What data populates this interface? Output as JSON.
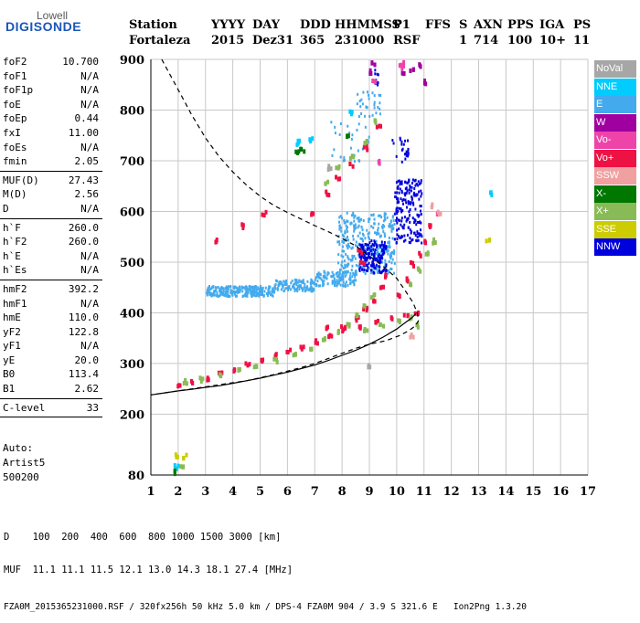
{
  "logo": {
    "top": "Lowell",
    "main": "DIGISONDE"
  },
  "header": {
    "labels": [
      "Station",
      "YYYY",
      "DAY",
      "DDD",
      "HHMMSS",
      "P1",
      "FFS",
      "S",
      "AXN",
      "PPS",
      "IGA",
      "PS"
    ],
    "values": [
      "Fortaleza",
      "2015",
      "Dez31",
      "365",
      "231000",
      "RSF",
      "1",
      "714",
      "100",
      "10+",
      "11"
    ]
  },
  "params": [
    [
      {
        "label": "foF2",
        "value": "10.700"
      },
      {
        "label": "foF1",
        "value": "N/A"
      },
      {
        "label": "foF1p",
        "value": "N/A"
      },
      {
        "label": "foE",
        "value": "N/A"
      },
      {
        "label": "foEp",
        "value": "0.44"
      },
      {
        "label": "fxI",
        "value": "11.00"
      },
      {
        "label": "foEs",
        "value": "N/A"
      },
      {
        "label": "fmin",
        "value": "2.05"
      }
    ],
    [
      {
        "label": "MUF(D)",
        "value": "27.43"
      },
      {
        "label": "M(D)",
        "value": "2.56"
      },
      {
        "label": "D",
        "value": "N/A"
      }
    ],
    [
      {
        "label": "h`F",
        "value": "260.0"
      },
      {
        "label": "h`F2",
        "value": "260.0"
      },
      {
        "label": "h`E",
        "value": "N/A"
      },
      {
        "label": "h`Es",
        "value": "N/A"
      }
    ],
    [
      {
        "label": "hmF2",
        "value": "392.2"
      },
      {
        "label": "hmF1",
        "value": "N/A"
      },
      {
        "label": "hmE",
        "value": "110.0"
      },
      {
        "label": "yF2",
        "value": "122.8"
      },
      {
        "label": "yF1",
        "value": "N/A"
      },
      {
        "label": "yE",
        "value": "20.0"
      },
      {
        "label": "B0",
        "value": "113.4"
      },
      {
        "label": "B1",
        "value": "2.62"
      }
    ],
    [
      {
        "label": "C-level",
        "value": "33"
      }
    ]
  ],
  "auto": {
    "label": "Auto:",
    "artist": "Artist5",
    "code": "500200"
  },
  "legend": [
    {
      "label": "NoVal",
      "color": "#a6a6a6"
    },
    {
      "label": "NNE",
      "color": "#00ccff"
    },
    {
      "label": "E",
      "color": "#44aaee"
    },
    {
      "label": "W",
      "color": "#a000a0"
    },
    {
      "label": "Vo-",
      "color": "#ee44aa"
    },
    {
      "label": "Vo+",
      "color": "#ee1144"
    },
    {
      "label": "SSW",
      "color": "#f0a0a0"
    },
    {
      "label": "X-",
      "color": "#007700"
    },
    {
      "label": "X+",
      "color": "#88bb55"
    },
    {
      "label": "SSE",
      "color": "#cccc00"
    },
    {
      "label": "NNW",
      "color": "#0000dd"
    }
  ],
  "footer": {
    "line1": "D    100  200  400  600  800 1000 1500 3000 [km]",
    "line2": "MUF  11.1 11.1 11.5 12.1 13.0 14.3 18.1 27.4 [MHz]",
    "line3": "FZA0M_2015365231000.RSF / 320fx256h 50 kHz 5.0 km / DPS-4 FZA0M 904 / 3.9 S 321.6 E   Ion2Png 1.3.20"
  },
  "chart_data": {
    "type": "scatter",
    "xlim": [
      1,
      17
    ],
    "ylim": [
      80,
      900
    ],
    "x_ticks": [
      1,
      2,
      3,
      4,
      5,
      6,
      7,
      8,
      9,
      10,
      11,
      12,
      13,
      14,
      15,
      16,
      17
    ],
    "y_ticks": [
      80,
      200,
      300,
      400,
      500,
      600,
      700,
      800,
      900
    ],
    "grid": true,
    "legend_placement": "right",
    "series": [
      {
        "name": "E",
        "color": "#44aaee",
        "clusters": [
          {
            "x": [
              3.0,
              5.5
            ],
            "y": [
              435,
              455
            ],
            "n": 260
          },
          {
            "x": [
              5.5,
              7.0
            ],
            "y": [
              445,
              468
            ],
            "n": 120
          },
          {
            "x": [
              7.0,
              8.5
            ],
            "y": [
              455,
              485
            ],
            "n": 120
          },
          {
            "x": [
              7.8,
              9.9
            ],
            "y": [
              480,
              600
            ],
            "n": 320
          },
          {
            "x": [
              8.5,
              9.4
            ],
            "y": [
              790,
              840
            ],
            "n": 30
          },
          {
            "x": [
              7.5,
              9.0
            ],
            "y": [
              700,
              780
            ],
            "n": 30
          }
        ]
      },
      {
        "name": "NNW",
        "color": "#0000dd",
        "clusters": [
          {
            "x": [
              8.6,
              9.6
            ],
            "y": [
              480,
              545
            ],
            "n": 150
          },
          {
            "x": [
              9.9,
              10.9
            ],
            "y": [
              540,
              665
            ],
            "n": 180
          },
          {
            "x": [
              9.8,
              10.4
            ],
            "y": [
              700,
              750
            ],
            "n": 25
          },
          {
            "x": [
              9.1,
              9.3
            ],
            "y": [
              850,
              890
            ],
            "n": 10
          }
        ]
      },
      {
        "name": "Vo+",
        "color": "#ee1144",
        "points": [
          [
            2.0,
            263
          ],
          [
            2.5,
            268
          ],
          [
            3.0,
            275
          ],
          [
            3.5,
            283
          ],
          [
            4.0,
            292
          ],
          [
            4.5,
            302
          ],
          [
            5.0,
            312
          ],
          [
            5.5,
            320
          ],
          [
            6.0,
            328
          ],
          [
            6.5,
            336
          ],
          [
            7.0,
            346
          ],
          [
            7.5,
            358
          ],
          [
            8.0,
            374
          ],
          [
            8.5,
            392
          ],
          [
            8.8,
            410
          ],
          [
            9.1,
            430
          ],
          [
            9.4,
            452
          ],
          [
            9.6,
            478
          ],
          [
            7.4,
            375
          ],
          [
            8.0,
            370
          ],
          [
            8.6,
            378
          ],
          [
            9.2,
            385
          ],
          [
            9.8,
            392
          ],
          [
            10.3,
            398
          ],
          [
            10.7,
            403
          ],
          [
            10.0,
            440
          ],
          [
            10.3,
            470
          ],
          [
            10.5,
            500
          ],
          [
            10.8,
            520
          ],
          [
            11.0,
            545
          ],
          [
            11.2,
            575
          ],
          [
            6.9,
            600
          ],
          [
            7.4,
            640
          ],
          [
            7.8,
            670
          ],
          [
            8.3,
            695
          ],
          [
            8.8,
            730
          ],
          [
            9.3,
            770
          ],
          [
            5.1,
            600
          ],
          [
            4.3,
            575
          ],
          [
            3.3,
            545
          ],
          [
            8.7,
            505
          ],
          [
            8.6,
            525
          ]
        ]
      },
      {
        "name": "X+",
        "color": "#88bb55",
        "points": [
          [
            2.2,
            268
          ],
          [
            2.8,
            272
          ],
          [
            3.5,
            279
          ],
          [
            4.2,
            289
          ],
          [
            4.8,
            298
          ],
          [
            5.5,
            310
          ],
          [
            6.2,
            322
          ],
          [
            6.8,
            336
          ],
          [
            7.3,
            350
          ],
          [
            7.8,
            365
          ],
          [
            8.2,
            380
          ],
          [
            8.5,
            398
          ],
          [
            8.8,
            418
          ],
          [
            9.1,
            438
          ],
          [
            8.8,
            372
          ],
          [
            9.4,
            382
          ],
          [
            10.0,
            390
          ],
          [
            10.5,
            396
          ],
          [
            10.7,
            380
          ],
          [
            10.5,
            460
          ],
          [
            10.8,
            490
          ],
          [
            11.1,
            520
          ],
          [
            11.3,
            545
          ],
          [
            7.4,
            660
          ],
          [
            7.8,
            690
          ],
          [
            8.3,
            710
          ],
          [
            8.8,
            740
          ],
          [
            9.2,
            780
          ],
          [
            1.9,
            95
          ],
          [
            2.1,
            100
          ]
        ]
      },
      {
        "name": "W",
        "color": "#a000a0",
        "points": [
          [
            9.0,
            880
          ],
          [
            9.1,
            895
          ],
          [
            10.2,
            880
          ],
          [
            10.5,
            885
          ],
          [
            10.8,
            892
          ],
          [
            11.0,
            860
          ]
        ]
      },
      {
        "name": "Vo-",
        "color": "#ee44aa",
        "points": [
          [
            10.1,
            890
          ],
          [
            10.2,
            895
          ],
          [
            9.3,
            700
          ],
          [
            11.4,
            600
          ],
          [
            9.1,
            860
          ]
        ]
      },
      {
        "name": "NNE",
        "color": "#00ccff",
        "points": [
          [
            6.3,
            740
          ],
          [
            6.4,
            745
          ],
          [
            6.8,
            745
          ],
          [
            8.3,
            800
          ],
          [
            13.4,
            640
          ],
          [
            1.9,
            100
          ]
        ]
      },
      {
        "name": "X-",
        "color": "#007700",
        "points": [
          [
            6.3,
            720
          ],
          [
            6.5,
            725
          ],
          [
            8.2,
            750
          ],
          [
            1.9,
            90
          ]
        ]
      },
      {
        "name": "SSW",
        "color": "#f0a0a0",
        "points": [
          [
            11.5,
            600
          ],
          [
            11.3,
            615
          ],
          [
            10.5,
            360
          ]
        ]
      },
      {
        "name": "SSE",
        "color": "#cccc00",
        "points": [
          [
            13.3,
            550
          ],
          [
            2.2,
            120
          ],
          [
            1.9,
            122
          ]
        ]
      },
      {
        "name": "NoVal",
        "color": "#a6a6a6",
        "points": [
          [
            7.5,
            690
          ],
          [
            8.9,
            300
          ]
        ]
      }
    ],
    "curves": [
      {
        "style": "dashed",
        "x": [
          1.4,
          1.6,
          1.8,
          2.1,
          2.5,
          3,
          3.5,
          4,
          4.5,
          5,
          5.5,
          6,
          6.5,
          7,
          7.5,
          8,
          8.5,
          9,
          9.5,
          10,
          10.3,
          10.6,
          10.75,
          10.8,
          10.7,
          10.45,
          10.1,
          9.6,
          9,
          8.5,
          8,
          7.5,
          7,
          6.5,
          6,
          5.5,
          5,
          4.5,
          4,
          3.5,
          3,
          2.5,
          2,
          1.5,
          1
        ],
        "y": [
          900,
          880,
          860,
          830,
          790,
          745,
          708,
          678,
          652,
          630,
          612,
          598,
          585,
          572,
          560,
          547,
          532,
          512,
          492,
          468,
          445,
          420,
          400,
          385,
          375,
          365,
          355,
          345,
          338,
          330,
          320,
          310,
          300,
          292,
          285,
          278,
          272,
          266,
          262,
          258,
          254,
          250,
          246,
          242,
          238
        ]
      },
      {
        "style": "solid",
        "x": [
          1,
          1.5,
          2,
          2.5,
          3,
          3.5,
          4,
          4.5,
          5,
          5.5,
          6,
          6.5,
          7,
          7.5,
          8,
          8.5,
          9,
          9.5,
          10,
          10.3,
          10.55,
          10.7
        ],
        "y": [
          238,
          242,
          246,
          249,
          253,
          256,
          261,
          266,
          271,
          277,
          283,
          290,
          297,
          306,
          316,
          326,
          338,
          352,
          368,
          380,
          390,
          398
        ]
      }
    ]
  }
}
